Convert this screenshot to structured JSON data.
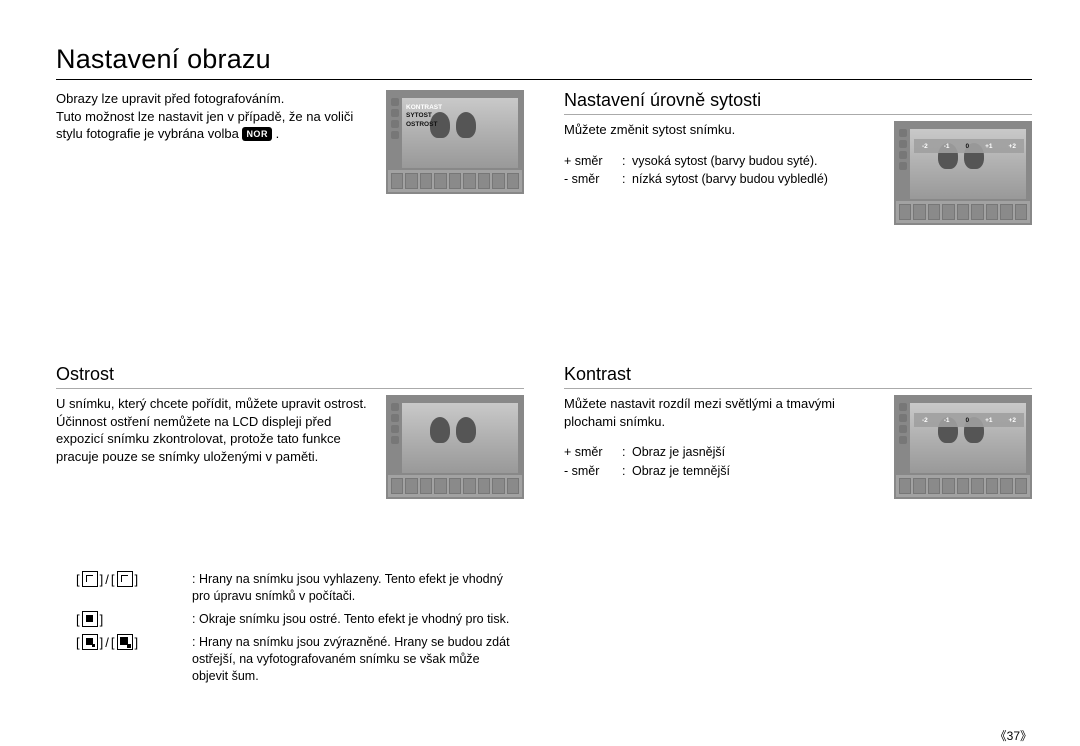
{
  "title": "Nastavení obrazu",
  "intro": {
    "line1": "Obrazy lze upravit před fotografováním.",
    "line2": "Tuto možnost lze nastavit jen v případě, že na voliči stylu fotografie je vybrána volba ",
    "nor_label": "NOR",
    "period": " ."
  },
  "intro_menu": {
    "m1": "KONTRAST",
    "m2": "SYTOST",
    "m3": "OSTROST"
  },
  "sytost": {
    "heading": "Nastavení úrovně sytosti",
    "body": "Můžete změnit sytost snímku.",
    "plus_k": "+ směr",
    "plus_v": "vysoká sytost (barvy budou syté).",
    "minus_k": "- směr",
    "minus_v": "nízká sytost (barvy budou vybledlé)"
  },
  "scale": {
    "m2": "-2",
    "m1": "-1",
    "z": "0",
    "p1": "+1",
    "p2": "+2"
  },
  "ostrost": {
    "heading": "Ostrost",
    "body": "U snímku, který chcete pořídit, můžete upravit ostrost. Účinnost ostření nemůžete na LCD displeji před expozicí snímku zkontrolovat, protože tato funkce pracuje pouze se snímky uloženými v paměti."
  },
  "kontrast": {
    "heading": "Kontrast",
    "body": "Můžete nastavit rozdíl mezi světlými a tmavými plochami snímku.",
    "plus_k": "+ směr",
    "plus_v": "Obraz je jasnější",
    "minus_k": "- směr",
    "minus_v": "Obraz je temnější"
  },
  "defs": {
    "r1": "Hrany na snímku jsou vyhlazeny. Tento efekt je vhodný pro úpravu snímků v počítači.",
    "r2": "Okraje snímku jsou ostré. Tento efekt je vhodný pro tisk.",
    "r3": "Hrany na snímku jsou zvýrazněné. Hrany se budou zdát ostřejší, na vyfotografovaném snímku se však může objevit šum."
  },
  "bracket": {
    "open": "[",
    "close": "]",
    "slash": "/"
  },
  "colon": ":",
  "pagenum": "《37》"
}
